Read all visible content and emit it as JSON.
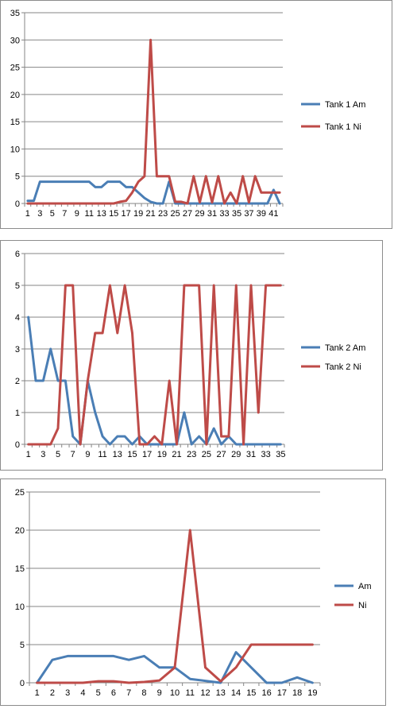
{
  "chart_data": [
    {
      "type": "line",
      "ylim": [
        0,
        35
      ],
      "yticks": [
        "0",
        "5",
        "10",
        "15",
        "20",
        "25",
        "30",
        "35"
      ],
      "categories": [
        "1",
        "2",
        "3",
        "4",
        "5",
        "6",
        "7",
        "8",
        "9",
        "10",
        "11",
        "12",
        "13",
        "14",
        "15",
        "16",
        "17",
        "18",
        "19",
        "20",
        "21",
        "22",
        "23",
        "24",
        "25",
        "26",
        "27",
        "28",
        "29",
        "30",
        "31",
        "32",
        "33",
        "34",
        "35",
        "36",
        "37",
        "38",
        "39",
        "40",
        "41",
        "42"
      ],
      "xtick_labels": [
        "1",
        "3",
        "5",
        "7",
        "9",
        "11",
        "13",
        "15",
        "17",
        "19",
        "21",
        "23",
        "25",
        "27",
        "29",
        "31",
        "33",
        "35",
        "37",
        "39",
        "41"
      ],
      "grid": true,
      "legend": "right",
      "series": [
        {
          "name": "Tank 1 Am",
          "color": "#4a7eb5",
          "values": [
            0.5,
            0.5,
            4,
            4,
            4,
            4,
            4,
            4,
            4,
            4,
            4,
            3,
            3,
            4,
            4,
            4,
            3,
            3,
            2,
            1,
            0.3,
            0,
            0,
            4,
            0,
            0,
            0,
            0,
            0,
            0,
            0,
            0,
            0,
            0,
            0,
            0,
            0,
            0,
            0,
            0,
            2.5,
            0
          ]
        },
        {
          "name": "Tank 1 Ni",
          "color": "#be4b48",
          "values": [
            0,
            0,
            0,
            0,
            0,
            0,
            0,
            0,
            0,
            0,
            0,
            0,
            0,
            0,
            0,
            0.3,
            0.5,
            2,
            4,
            5,
            30,
            5,
            5,
            5,
            0.3,
            0.3,
            0,
            5,
            0.2,
            5,
            0.2,
            5,
            0,
            2,
            0,
            5,
            0.2,
            5,
            2,
            2,
            2,
            2
          ]
        }
      ]
    },
    {
      "type": "line",
      "ylim": [
        0,
        6
      ],
      "yticks": [
        "0",
        "1",
        "2",
        "3",
        "4",
        "5",
        "6"
      ],
      "categories": [
        "1",
        "2",
        "3",
        "4",
        "5",
        "6",
        "7",
        "8",
        "9",
        "10",
        "11",
        "12",
        "13",
        "14",
        "15",
        "16",
        "17",
        "18",
        "19",
        "20",
        "21",
        "22",
        "23",
        "24",
        "25",
        "26",
        "27",
        "28",
        "29",
        "30",
        "31",
        "32",
        "33",
        "34",
        "35"
      ],
      "xtick_labels": [
        "1",
        "3",
        "5",
        "7",
        "9",
        "11",
        "13",
        "15",
        "17",
        "19",
        "21",
        "23",
        "25",
        "27",
        "29",
        "31",
        "33",
        "35"
      ],
      "grid": true,
      "legend": "right",
      "series": [
        {
          "name": "Tank 2 Am",
          "color": "#4a7eb5",
          "values": [
            4,
            2,
            2,
            3,
            2,
            2,
            0.25,
            0,
            2,
            1,
            0.25,
            0,
            0.25,
            0.25,
            0,
            0.25,
            0,
            0,
            0,
            0,
            0,
            1,
            0,
            0.25,
            0,
            0.5,
            0,
            0.25,
            0,
            0,
            0,
            0,
            0,
            0,
            0
          ]
        },
        {
          "name": "Tank 2 Ni",
          "color": "#be4b48",
          "values": [
            0,
            0,
            0,
            0,
            0.5,
            5,
            5,
            0,
            2,
            3.5,
            3.5,
            5,
            3.5,
            5,
            3.5,
            0,
            0,
            0.25,
            0,
            2,
            0,
            5,
            5,
            5,
            0,
            5,
            0.25,
            0.25,
            5,
            0,
            5,
            1,
            5,
            5,
            5
          ]
        }
      ]
    },
    {
      "type": "line",
      "ylim": [
        0,
        25
      ],
      "yticks": [
        "0",
        "5",
        "10",
        "15",
        "20",
        "25"
      ],
      "categories": [
        "1",
        "2",
        "3",
        "4",
        "5",
        "6",
        "7",
        "8",
        "9",
        "10",
        "11",
        "12",
        "13",
        "14",
        "15",
        "16",
        "17",
        "18",
        "19"
      ],
      "xtick_labels": [
        "1",
        "2",
        "3",
        "4",
        "5",
        "6",
        "7",
        "8",
        "9",
        "10",
        "11",
        "12",
        "13",
        "14",
        "15",
        "16",
        "17",
        "18",
        "19"
      ],
      "grid": true,
      "legend": "right",
      "series": [
        {
          "name": "Am",
          "color": "#4a7eb5",
          "values": [
            0,
            3,
            3.5,
            3.5,
            3.5,
            3.5,
            3,
            3.5,
            2,
            2,
            0.5,
            0.25,
            0,
            4,
            2,
            0,
            0,
            0.7,
            0
          ]
        },
        {
          "name": "Ni",
          "color": "#be4b48",
          "values": [
            0,
            0,
            0,
            0,
            0.2,
            0.2,
            0,
            0.1,
            0.3,
            2,
            20,
            2,
            0.2,
            2,
            5,
            5,
            5,
            5,
            5
          ]
        }
      ]
    }
  ]
}
